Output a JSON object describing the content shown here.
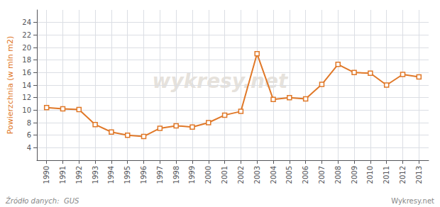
{
  "chart_data": {
    "type": "line",
    "ylabel": "Powierzchnia (w mln m2)",
    "annotations": [
      "Źródło danych:  GUS",
      "Wykresy.net",
      "wykresy.net"
    ],
    "x": [
      1990,
      1991,
      1992,
      1993,
      1994,
      1995,
      1996,
      1997,
      1998,
      1999,
      2000,
      2001,
      2002,
      2003,
      2004,
      2005,
      2006,
      2007,
      2008,
      2009,
      2010,
      2011,
      2012,
      2013
    ],
    "values": [
      10.4,
      10.2,
      10.1,
      7.7,
      6.5,
      6.0,
      5.8,
      7.1,
      7.5,
      7.3,
      8.0,
      9.2,
      9.8,
      19.0,
      11.7,
      12.0,
      11.8,
      14.1,
      17.3,
      16.0,
      15.9,
      14.0,
      15.7,
      15.3
    ],
    "color": "#e07828",
    "marker": "square",
    "xlim": [
      1989.4,
      2013.6
    ],
    "xticks": [
      1990,
      1991,
      1992,
      1993,
      1994,
      1995,
      1996,
      1997,
      1998,
      1999,
      2000,
      2001,
      2002,
      2003,
      2004,
      2005,
      2006,
      2007,
      2008,
      2009,
      2010,
      2011,
      2012,
      2013
    ],
    "ylim": [
      2,
      26
    ],
    "yticks": [
      4,
      6,
      8,
      10,
      12,
      14,
      16,
      18,
      20,
      22,
      24
    ],
    "grid": true
  }
}
